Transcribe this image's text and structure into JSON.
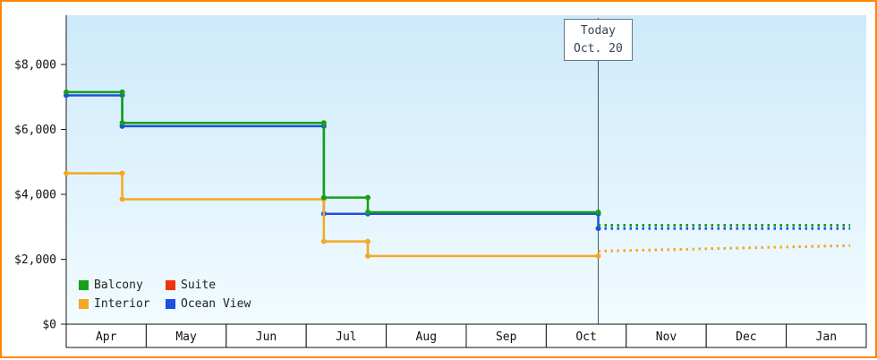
{
  "frame": {
    "border_color": "#ff8800",
    "axis_color": "#1a1a1a",
    "today_line_color": "#445566",
    "plot_bg_top": "#cdeafa",
    "plot_bg_bottom": "#f2fbff"
  },
  "today": {
    "line1": "Today",
    "line2": "Oct. 20"
  },
  "chart_data": {
    "type": "line",
    "title": "",
    "xlabel": "",
    "ylabel": "",
    "grid": false,
    "legend_position": "bottom-left-inside",
    "ylim": [
      0,
      9500
    ],
    "months": [
      "Apr",
      "May",
      "Jun",
      "Jul",
      "Aug",
      "Sep",
      "Oct",
      "Nov",
      "Dec",
      "Jan"
    ],
    "y_ticks": [
      {
        "value": 0,
        "label": "$0"
      },
      {
        "value": 2000,
        "label": "$2,000"
      },
      {
        "value": 4000,
        "label": "$4,000"
      },
      {
        "value": 6000,
        "label": "$6,000"
      },
      {
        "value": 8000,
        "label": "$8,000"
      }
    ],
    "today_marker": {
      "month_x": 6.65,
      "date_label": "Oct. 20"
    },
    "series": [
      {
        "name": "Balcony",
        "color": "#15a015",
        "points": [
          [
            0,
            7150
          ],
          [
            0.7,
            7150
          ],
          [
            0.7,
            6200
          ],
          [
            3.22,
            6200
          ],
          [
            3.22,
            3900
          ],
          [
            3.77,
            3900
          ],
          [
            3.77,
            3450
          ],
          [
            6.65,
            3450
          ]
        ],
        "forecast": [
          [
            6.65,
            3050
          ],
          [
            9.8,
            3050
          ]
        ]
      },
      {
        "name": "Suite",
        "color": "#ee3311",
        "points": [],
        "forecast": []
      },
      {
        "name": "Interior",
        "color": "#f5a822",
        "points": [
          [
            0,
            4650
          ],
          [
            0.7,
            4650
          ],
          [
            0.7,
            3850
          ],
          [
            3.22,
            3850
          ],
          [
            3.22,
            2550
          ],
          [
            3.77,
            2550
          ],
          [
            3.77,
            2100
          ],
          [
            6.65,
            2100
          ]
        ],
        "forecast": [
          [
            6.65,
            2250
          ],
          [
            9.8,
            2420
          ]
        ]
      },
      {
        "name": "Ocean View",
        "color": "#1d4fe0",
        "points": [
          [
            0,
            7050
          ],
          [
            0.7,
            7050
          ],
          [
            0.7,
            6100
          ],
          [
            3.22,
            6100
          ],
          [
            3.22,
            3400
          ],
          [
            3.77,
            3400
          ],
          [
            6.65,
            3400
          ],
          [
            6.65,
            2950
          ]
        ],
        "forecast": [
          [
            6.65,
            2950
          ],
          [
            9.8,
            2950
          ]
        ]
      }
    ],
    "legend": [
      {
        "label": "Balcony",
        "color": "#15a015"
      },
      {
        "label": "Suite",
        "color": "#ee3311"
      },
      {
        "label": "Interior",
        "color": "#f5a822"
      },
      {
        "label": "Ocean View",
        "color": "#1d4fe0"
      }
    ]
  }
}
